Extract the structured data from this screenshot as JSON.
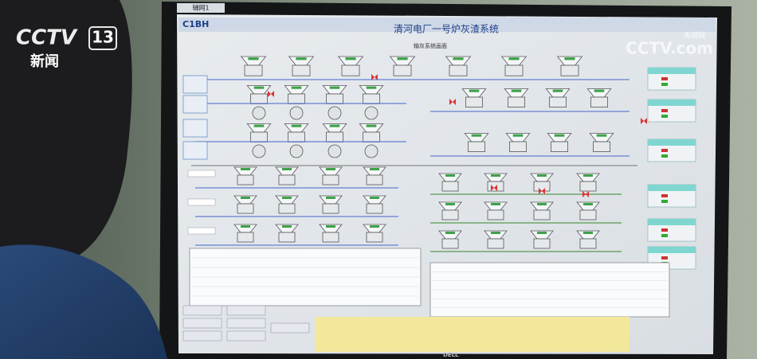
{
  "overlay": {
    "channel_logo": "CCTV",
    "channel_number": "13",
    "program": "新闻",
    "watermark": "CCTV.com",
    "watermark_cn": "央视网"
  },
  "screen": {
    "tab": "辅网1",
    "brand": "C1BH",
    "title": "清河电厂一号炉灰渣系统",
    "subtitle": "输灰系统画面"
  },
  "monitor": {
    "brand": "DELL"
  }
}
